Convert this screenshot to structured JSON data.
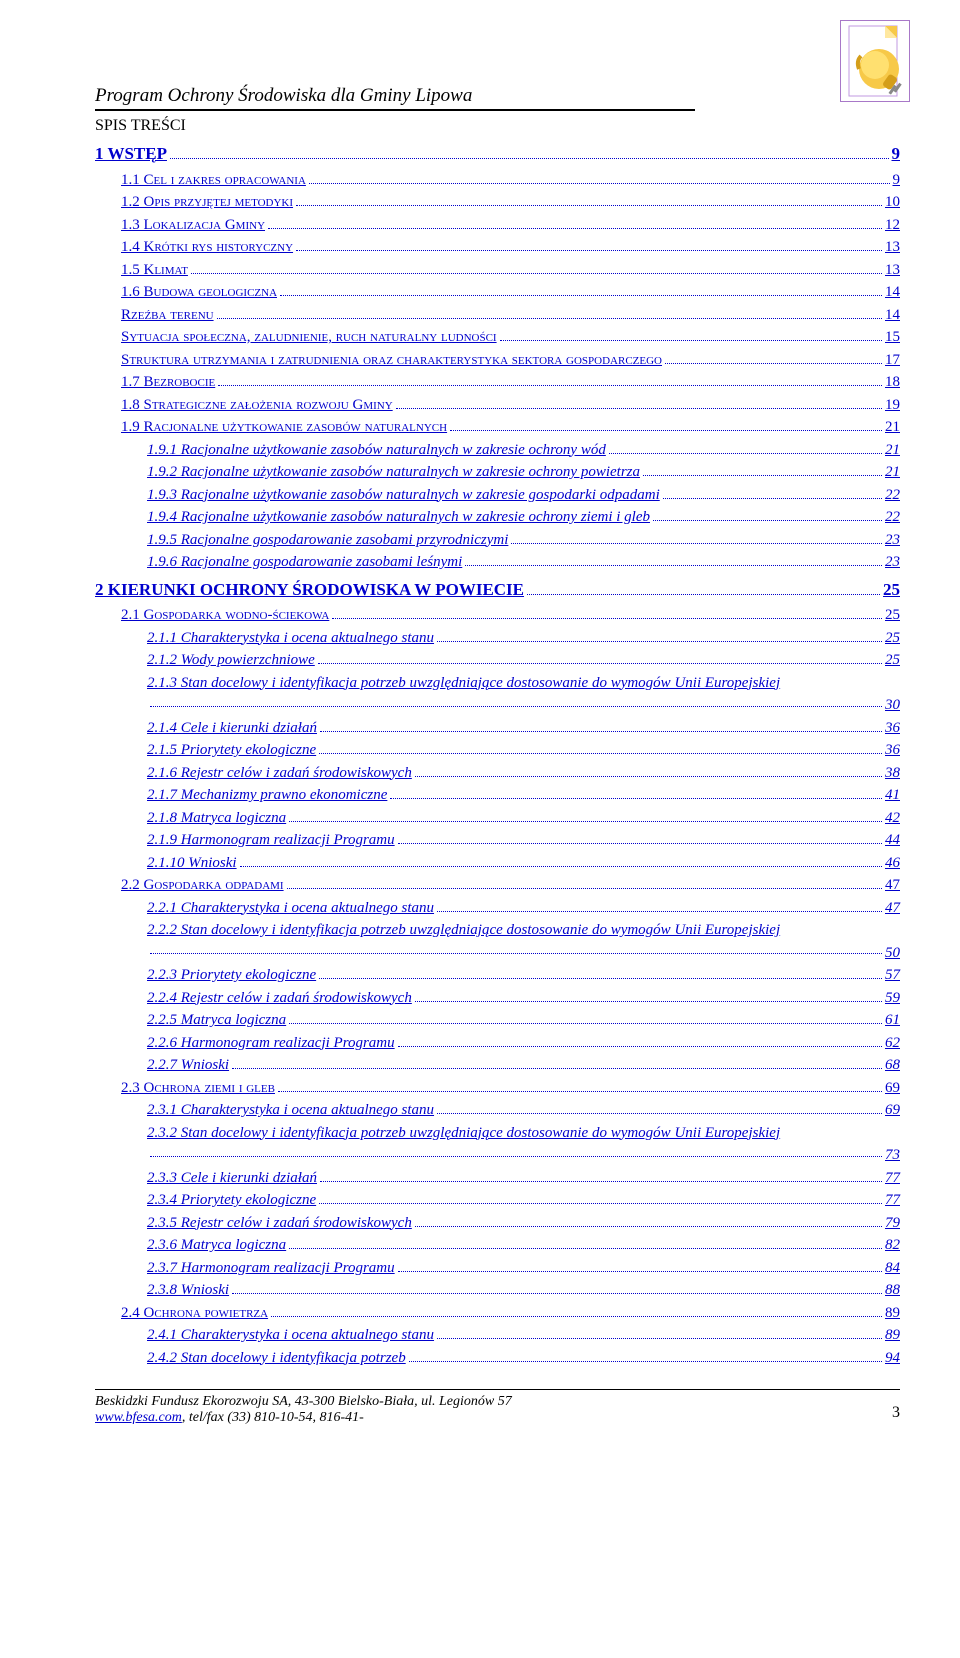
{
  "header": {
    "title": "Program Ochrony Środowiska dla Gminy Lipowa",
    "subtitle": "SPIS TREŚCI"
  },
  "colors": {
    "link": "#0000cc",
    "text": "#000000",
    "icon_border": "#a878c8",
    "page_fold": "#f7c948",
    "plug_body": "#f7c948",
    "plug_shadow": "#d49e1a"
  },
  "toc": [
    {
      "level": 1,
      "num": "1",
      "text": "WSTĘP",
      "page": "9"
    },
    {
      "level": 2,
      "num": "1.1",
      "text": "Cel i zakres opracowania",
      "page": "9"
    },
    {
      "level": 2,
      "num": "1.2",
      "text": "Opis przyjętej metodyki",
      "page": "10"
    },
    {
      "level": 2,
      "num": "1.3",
      "text": "Lokalizacja Gminy",
      "page": "12"
    },
    {
      "level": 2,
      "num": "1.4",
      "text": "Krótki rys historyczny",
      "page": "13"
    },
    {
      "level": 2,
      "num": "1.5",
      "text": "Klimat",
      "page": "13"
    },
    {
      "level": 2,
      "num": "1.6",
      "text": "Budowa geologiczna",
      "page": "14"
    },
    {
      "level": 2,
      "num": "",
      "text": "Rzeźba terenu",
      "page": "14"
    },
    {
      "level": 2,
      "num": "",
      "text": "Sytuacja społeczna, zaludnienie, ruch naturalny ludności",
      "page": "15"
    },
    {
      "level": 2,
      "num": "",
      "text": "Struktura utrzymania i zatrudnienia oraz charakterystyka sektora gospodarczego",
      "page": "17"
    },
    {
      "level": 2,
      "num": "1.7",
      "text": "Bezrobocie",
      "page": "18"
    },
    {
      "level": 2,
      "num": "1.8",
      "text": "Strategiczne założenia rozwoju Gminy",
      "page": "19"
    },
    {
      "level": 2,
      "num": "1.9",
      "text": "Racjonalne użytkowanie zasobów naturalnych",
      "page": "21"
    },
    {
      "level": 3,
      "num": "1.9.1",
      "text": "Racjonalne użytkowanie zasobów naturalnych w zakresie ochrony wód",
      "page": "21"
    },
    {
      "level": 3,
      "num": "1.9.2",
      "text": "Racjonalne użytkowanie zasobów naturalnych w zakresie ochrony powietrza",
      "page": "21"
    },
    {
      "level": 3,
      "num": "1.9.3",
      "text": "Racjonalne użytkowanie zasobów naturalnych w zakresie gospodarki odpadami",
      "page": "22"
    },
    {
      "level": 3,
      "num": "1.9.4",
      "text": "Racjonalne użytkowanie zasobów naturalnych w zakresie ochrony ziemi i gleb",
      "page": "22"
    },
    {
      "level": 3,
      "num": "1.9.5",
      "text": "Racjonalne gospodarowanie zasobami przyrodniczymi",
      "page": "23"
    },
    {
      "level": 3,
      "num": "1.9.6",
      "text": "Racjonalne gospodarowanie zasobami leśnymi",
      "page": "23"
    },
    {
      "level": 1,
      "num": "2",
      "text": "KIERUNKI OCHRONY ŚRODOWISKA W POWIECIE",
      "page": "25"
    },
    {
      "level": 2,
      "num": "2.1",
      "text": "Gospodarka wodno-ściekowa",
      "page": "25"
    },
    {
      "level": 3,
      "num": "2.1.1",
      "text": "Charakterystyka i ocena aktualnego stanu",
      "page": "25"
    },
    {
      "level": 3,
      "num": "2.1.2",
      "text": "Wody powierzchniowe",
      "page": "25"
    },
    {
      "level": 3,
      "num": "2.1.3",
      "text": "Stan docelowy i identyfikacja potrzeb uwzględniające dostosowanie do wymogów Unii Europejskiej",
      "page": "30",
      "multiline": true
    },
    {
      "level": 3,
      "num": "2.1.4",
      "text": "Cele i kierunki działań",
      "page": "36"
    },
    {
      "level": 3,
      "num": "2.1.5",
      "text": "Priorytety ekologiczne",
      "page": "36"
    },
    {
      "level": 3,
      "num": "2.1.6",
      "text": "Rejestr celów i zadań środowiskowych",
      "page": "38"
    },
    {
      "level": 3,
      "num": "2.1.7",
      "text": "Mechanizmy prawno ekonomiczne",
      "page": "41"
    },
    {
      "level": 3,
      "num": "2.1.8",
      "text": "Matryca logiczna",
      "page": "42"
    },
    {
      "level": 3,
      "num": "2.1.9",
      "text": "Harmonogram realizacji Programu",
      "page": "44"
    },
    {
      "level": 3,
      "num": "2.1.10",
      "text": "Wnioski",
      "page": "46"
    },
    {
      "level": 2,
      "num": "2.2",
      "text": "Gospodarka odpadami",
      "page": "47"
    },
    {
      "level": 3,
      "num": "2.2.1",
      "text": "Charakterystyka i ocena aktualnego stanu",
      "page": "47"
    },
    {
      "level": 3,
      "num": "2.2.2",
      "text": "Stan docelowy i identyfikacja potrzeb uwzględniające dostosowanie do wymogów Unii Europejskiej",
      "page": "50",
      "multiline": true
    },
    {
      "level": 3,
      "num": "2.2.3",
      "text": "Priorytety ekologiczne",
      "page": "57"
    },
    {
      "level": 3,
      "num": "2.2.4",
      "text": "Rejestr celów i zadań środowiskowych",
      "page": "59"
    },
    {
      "level": 3,
      "num": "2.2.5",
      "text": "Matryca logiczna",
      "page": "61"
    },
    {
      "level": 3,
      "num": "2.2.6",
      "text": "Harmonogram realizacji Programu",
      "page": "62"
    },
    {
      "level": 3,
      "num": "2.2.7",
      "text": "Wnioski",
      "page": "68"
    },
    {
      "level": 2,
      "num": "2.3",
      "text": "Ochrona ziemi i gleb",
      "page": "69"
    },
    {
      "level": 3,
      "num": "2.3.1",
      "text": "Charakterystyka i ocena aktualnego stanu",
      "page": "69"
    },
    {
      "level": 3,
      "num": "2.3.2",
      "text": "Stan docelowy i identyfikacja potrzeb uwzględniające dostosowanie do wymogów Unii Europejskiej",
      "page": "73",
      "multiline": true
    },
    {
      "level": 3,
      "num": "2.3.3",
      "text": "Cele i kierunki działań",
      "page": "77"
    },
    {
      "level": 3,
      "num": "2.3.4",
      "text": "Priorytety ekologiczne",
      "page": "77"
    },
    {
      "level": 3,
      "num": "2.3.5",
      "text": "Rejestr celów i zadań środowiskowych",
      "page": "79"
    },
    {
      "level": 3,
      "num": "2.3.6",
      "text": "Matryca logiczna",
      "page": "82"
    },
    {
      "level": 3,
      "num": "2.3.7",
      "text": "Harmonogram realizacji Programu",
      "page": "84"
    },
    {
      "level": 3,
      "num": "2.3.8",
      "text": "Wnioski",
      "page": "88"
    },
    {
      "level": 2,
      "num": "2.4",
      "text": "Ochrona powietrza",
      "page": "89"
    },
    {
      "level": 3,
      "num": "2.4.1",
      "text": "Charakterystyka i ocena aktualnego stanu",
      "page": "89"
    },
    {
      "level": 3,
      "num": "2.4.2",
      "text": "Stan docelowy i identyfikacja potrzeb",
      "page": "94"
    }
  ],
  "footer": {
    "line1": "Beskidzki Fundusz Ekorozwoju SA, 43-300 Bielsko-Biała, ul. Legionów 57",
    "link_text": "www.bfesa.com",
    "line2_rest": ", tel/fax (33) 810-10-54, 816-41-",
    "page_number": "3"
  }
}
